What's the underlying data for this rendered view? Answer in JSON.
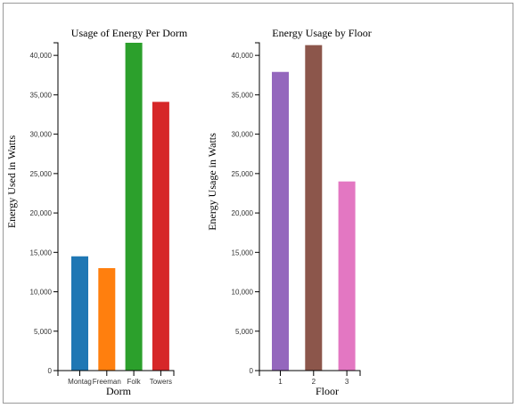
{
  "chart_data": [
    {
      "type": "bar",
      "title": "Usage of Energy Per Dorm",
      "xlabel": "Dorm",
      "ylabel": "Energy Used in Watts",
      "categories": [
        "Montag",
        "Freeman",
        "Folk",
        "Towers"
      ],
      "values": [
        14500,
        13000,
        41600,
        34100
      ],
      "colors": [
        "#1f77b4",
        "#ff7f0e",
        "#2ca02c",
        "#d62728"
      ],
      "ylim": [
        0,
        41600
      ],
      "yticks": [
        0,
        5000,
        10000,
        15000,
        20000,
        25000,
        30000,
        35000,
        40000
      ],
      "ytick_labels": [
        "0",
        "5,000",
        "10,000",
        "15,000",
        "20,000",
        "25,000",
        "30,000",
        "35,000",
        "40,000"
      ],
      "grid": false
    },
    {
      "type": "bar",
      "title": "Energy Usage by Floor",
      "xlabel": "Floor",
      "ylabel": "Energy Usage in Watts",
      "categories": [
        "1",
        "2",
        "3"
      ],
      "values": [
        37900,
        41300,
        24000
      ],
      "colors": [
        "#9467bd",
        "#8c564b",
        "#e377c2"
      ],
      "ylim": [
        0,
        41600
      ],
      "yticks": [
        0,
        5000,
        10000,
        15000,
        20000,
        25000,
        30000,
        35000,
        40000
      ],
      "ytick_labels": [
        "0",
        "5,000",
        "10,000",
        "15,000",
        "20,000",
        "25,000",
        "30,000",
        "35,000",
        "40,000"
      ],
      "grid": false
    }
  ]
}
